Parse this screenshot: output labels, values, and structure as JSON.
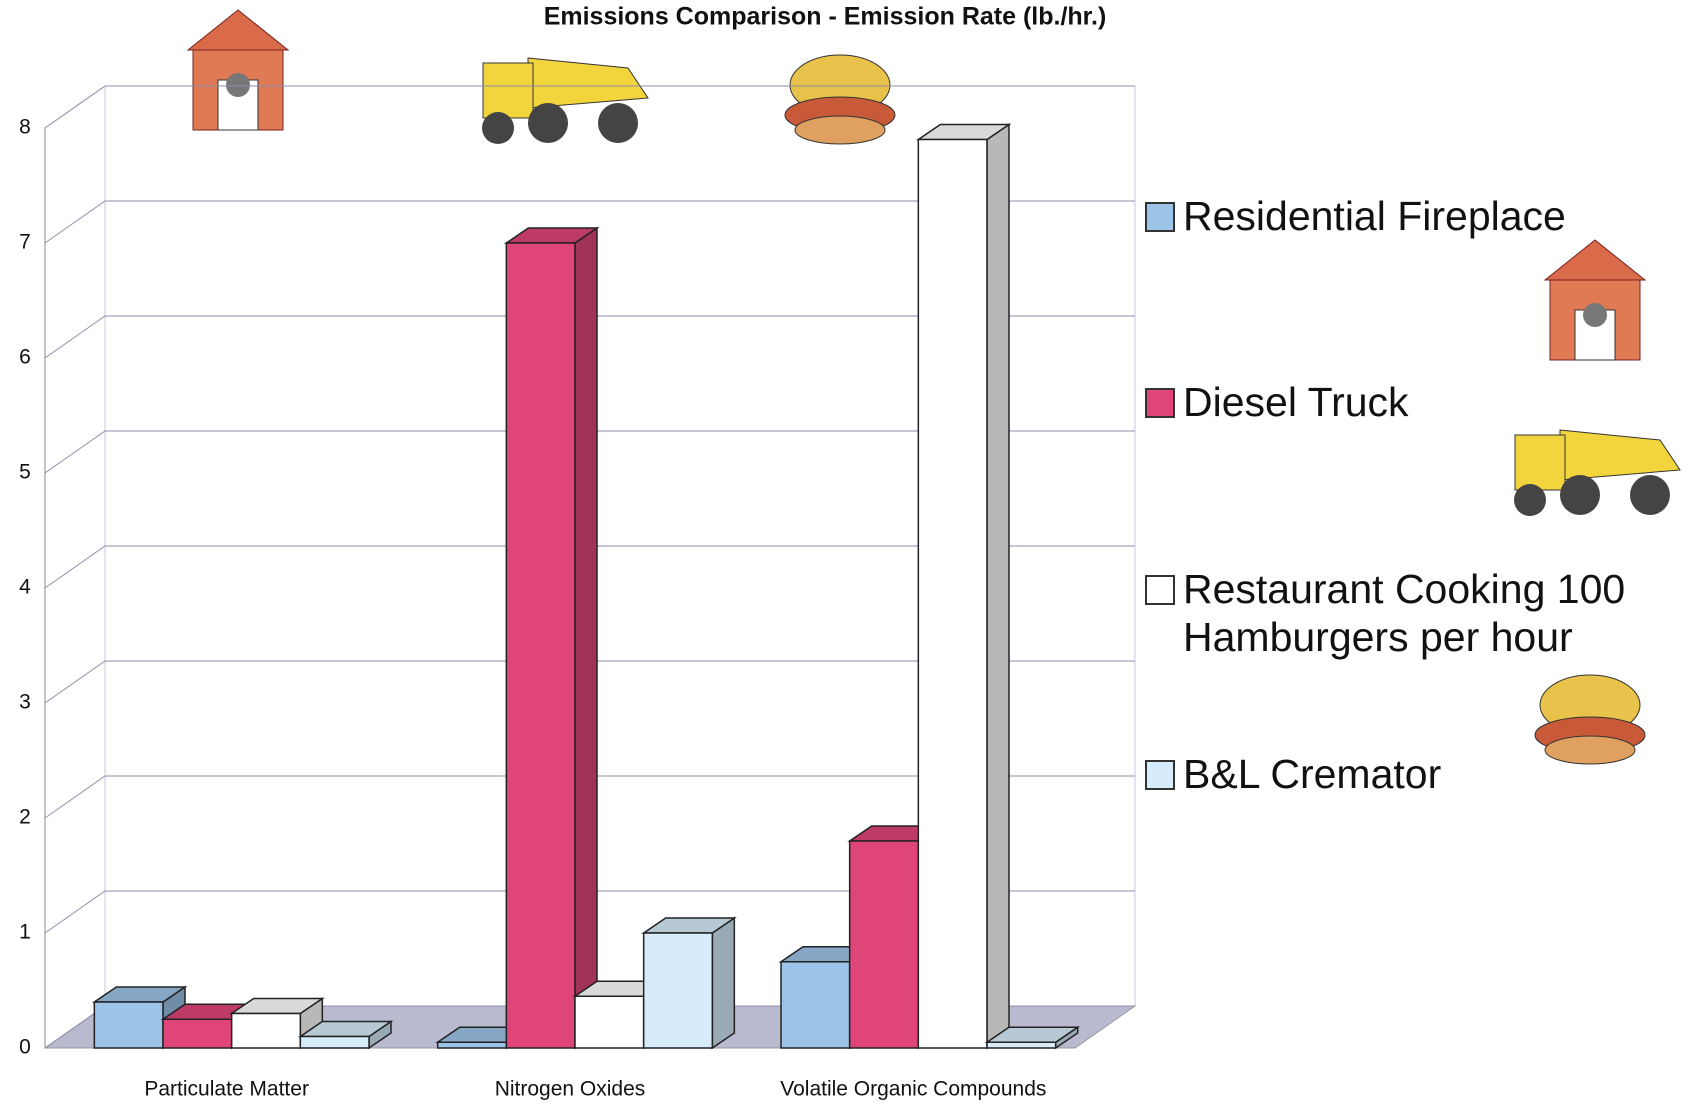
{
  "chart_data": {
    "type": "bar3d",
    "title": "Emissions Comparison - Emission Rate (lb./hr.)",
    "categories": [
      "Particulate Matter",
      "Nitrogen Oxides",
      "Volatile Organic Compounds"
    ],
    "series": [
      {
        "name": "Residential Fireplace",
        "color": "#9cc3e8",
        "values": [
          0.4,
          0.05,
          0.75
        ]
      },
      {
        "name": "Diesel Truck",
        "color": "#e0457a",
        "values": [
          0.25,
          7.0,
          1.8
        ]
      },
      {
        "name": "Restaurant Cooking 100 Hamburgers per hour",
        "color": "#ffffff",
        "values": [
          0.3,
          0.45,
          7.9
        ]
      },
      {
        "name": "B&L Cremator",
        "color": "#d6ecfa",
        "values": [
          0.1,
          1.0,
          0.05
        ]
      }
    ],
    "ylim": [
      0,
      8
    ],
    "yticks": [
      0,
      1,
      2,
      3,
      4,
      5,
      6,
      7,
      8
    ],
    "grid": true
  }
}
